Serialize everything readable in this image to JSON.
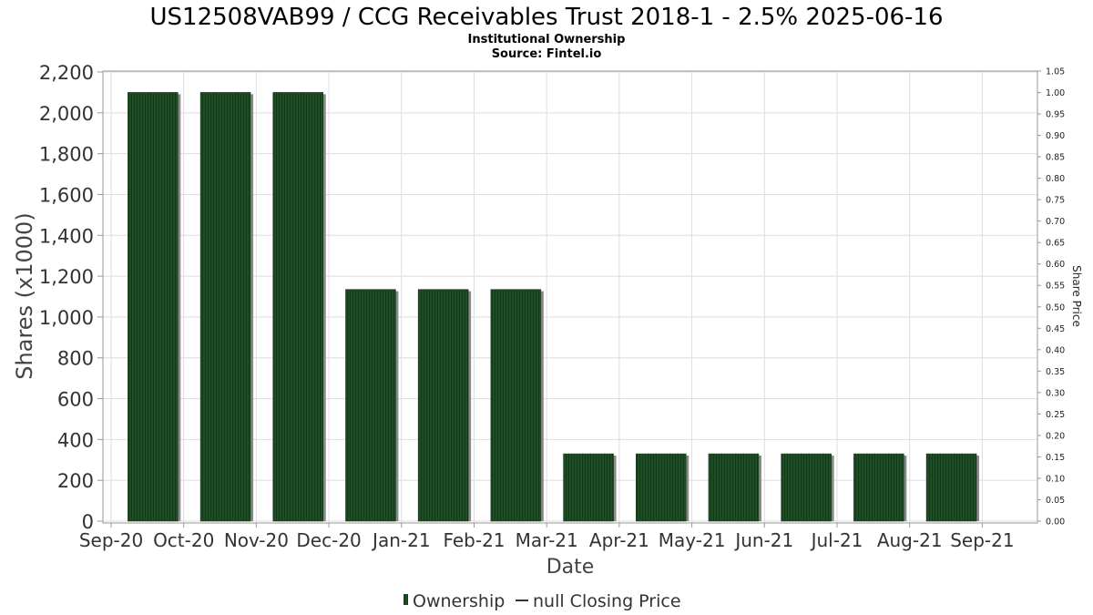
{
  "header": {
    "title": "US12508VAB99 / CCG Receivables Trust 2018-1 - 2.5% 2025-06-16",
    "subtitle": "Institutional Ownership",
    "source": "Source: Fintel.io"
  },
  "legend": {
    "ownership_label": "Ownership",
    "price_label": "null Closing Price"
  },
  "colors": {
    "bar_fill": "#1e4d25",
    "bar_stripe": "#123a18",
    "bar_shadow": "#8a8a8a",
    "grid": "#dedede",
    "axis": "#999999"
  },
  "chart_data": {
    "type": "bar",
    "title": "US12508VAB99 / CCG Receivables Trust 2018-1 - 2.5% 2025-06-16",
    "subtitle": "Institutional Ownership",
    "xlabel": "Date",
    "ylabel": "Shares (x1000)",
    "y2label": "Share Price",
    "x_ticks": [
      "Sep-20",
      "Oct-20",
      "Nov-20",
      "Dec-20",
      "Jan-21",
      "Feb-21",
      "Mar-21",
      "Apr-21",
      "May-21",
      "Jun-21",
      "Jul-21",
      "Aug-21",
      "Sep-21"
    ],
    "categories": [
      "Oct-20",
      "Nov-20",
      "Dec-20",
      "Jan-21",
      "Feb-21",
      "Mar-21",
      "Apr-21",
      "May-21",
      "Jun-21",
      "Jul-21",
      "Aug-21",
      "Sep-21"
    ],
    "series": [
      {
        "name": "Ownership",
        "values": [
          2100,
          2100,
          2100,
          1135,
          1135,
          1135,
          330,
          330,
          330,
          330,
          330,
          330
        ]
      }
    ],
    "ylim": [
      0,
      2200
    ],
    "y_ticks": [
      "0",
      "200",
      "400",
      "600",
      "800",
      "1,000",
      "1,200",
      "1,400",
      "1,600",
      "1,800",
      "2,000",
      "2,200"
    ],
    "y2lim": [
      0,
      1.05
    ],
    "y2_ticks": [
      "0.00",
      "0.05",
      "0.10",
      "0.15",
      "0.20",
      "0.25",
      "0.30",
      "0.35",
      "0.40",
      "0.45",
      "0.50",
      "0.55",
      "0.60",
      "0.65",
      "0.70",
      "0.75",
      "0.80",
      "0.85",
      "0.90",
      "0.95",
      "1.00",
      "1.05"
    ],
    "grid": true,
    "legend_position": "bottom-center"
  }
}
